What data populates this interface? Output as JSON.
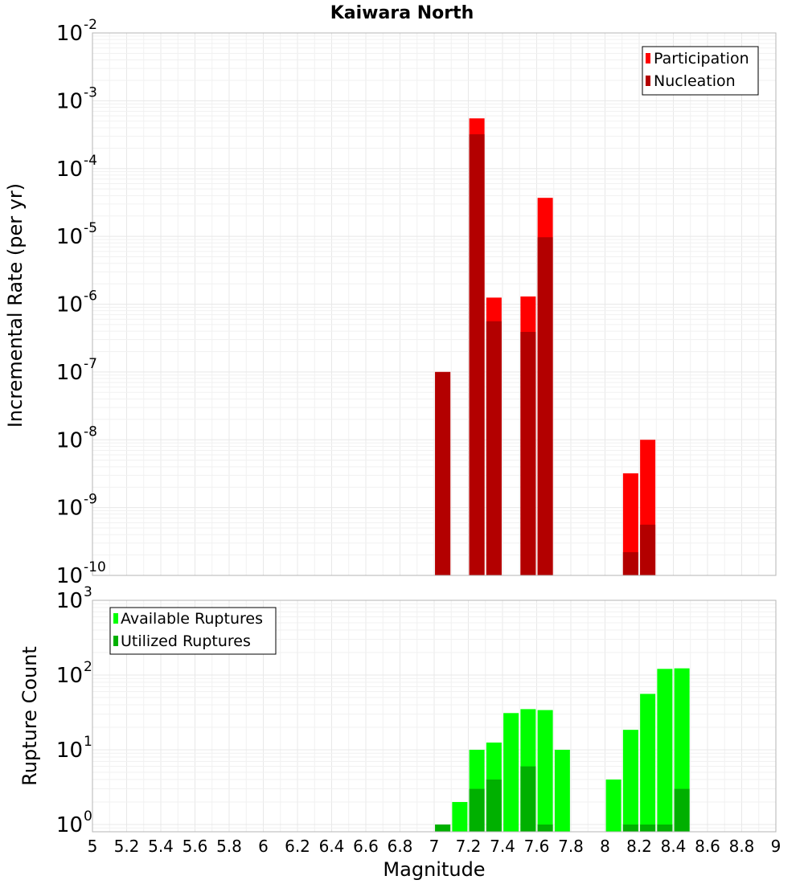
{
  "chart_data": [
    {
      "type": "bar",
      "title": "Kaiwara North",
      "xlabel": "",
      "ylabel": "Incremental Rate (per yr)",
      "yscale": "log",
      "ylim": [
        1e-10,
        0.01
      ],
      "xlim": [
        5,
        9
      ],
      "grid": true,
      "legend_position": "top-right",
      "x": [
        7.05,
        7.25,
        7.35,
        7.55,
        7.65,
        8.15,
        8.25
      ],
      "series": [
        {
          "name": "Participation",
          "color": "#ff0000",
          "values": [
            1e-07,
            0.00055,
            1.25e-06,
            1.3e-06,
            3.7e-05,
            3.2e-09,
            1e-08
          ]
        },
        {
          "name": "Nucleation",
          "color": "#b30000",
          "values": [
            1e-07,
            0.00032,
            5.6e-07,
            3.9e-07,
            9.7e-06,
            2.2e-10,
            5.6e-10
          ]
        }
      ]
    },
    {
      "type": "bar",
      "title": "",
      "xlabel": "Magnitude",
      "ylabel": "Rupture Count",
      "yscale": "log",
      "ylim": [
        0.8,
        1000
      ],
      "xlim": [
        5,
        9
      ],
      "grid": true,
      "legend_position": "top-left",
      "x": [
        7.05,
        7.15,
        7.25,
        7.35,
        7.45,
        7.55,
        7.65,
        7.75,
        8.05,
        8.15,
        8.25,
        8.35,
        8.45
      ],
      "series": [
        {
          "name": "Available Ruptures",
          "color": "#00ff00",
          "values": [
            1,
            2,
            10,
            12.5,
            31,
            35,
            34,
            10,
            4,
            18.5,
            56,
            121,
            123
          ]
        },
        {
          "name": "Utilized Ruptures",
          "color": "#00b000",
          "values": [
            1,
            0,
            3,
            4,
            0,
            6,
            1,
            0,
            0,
            1,
            1,
            1,
            3
          ]
        }
      ]
    }
  ],
  "x_ticks": [
    "5",
    "5.2",
    "5.4",
    "5.6",
    "5.8",
    "6",
    "6.2",
    "6.4",
    "6.6",
    "6.8",
    "7",
    "7.2",
    "7.4",
    "7.6",
    "7.8",
    "8",
    "8.2",
    "8.4",
    "8.6",
    "8.8",
    "9"
  ],
  "top_yticks": [
    {
      "base": "10",
      "exp": "-10"
    },
    {
      "base": "10",
      "exp": "-9"
    },
    {
      "base": "10",
      "exp": "-8"
    },
    {
      "base": "10",
      "exp": "-7"
    },
    {
      "base": "10",
      "exp": "-6"
    },
    {
      "base": "10",
      "exp": "-5"
    },
    {
      "base": "10",
      "exp": "-4"
    },
    {
      "base": "10",
      "exp": "-3"
    },
    {
      "base": "10",
      "exp": "-2"
    }
  ],
  "bottom_yticks": [
    {
      "base": "10",
      "exp": "0"
    },
    {
      "base": "10",
      "exp": "1"
    },
    {
      "base": "10",
      "exp": "2"
    },
    {
      "base": "10",
      "exp": "3"
    }
  ]
}
